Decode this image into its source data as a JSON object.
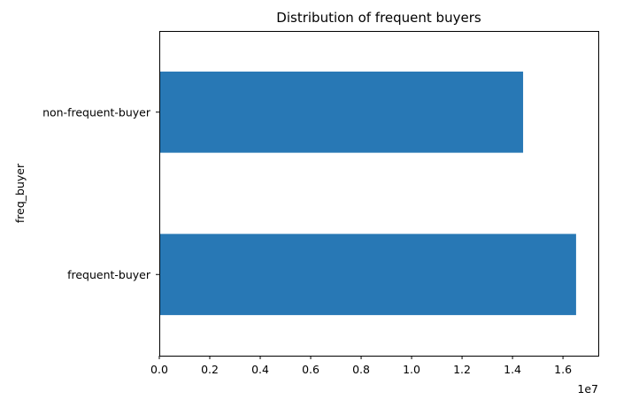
{
  "chart_data": {
    "type": "bar",
    "orientation": "horizontal",
    "title": "Distribution of frequent buyers",
    "xlabel": "",
    "ylabel": "freq_buyer",
    "categories": [
      "frequent-buyer",
      "non-frequent-buyer"
    ],
    "values": [
      16520000,
      14420000
    ],
    "xlim": [
      0,
      17400000
    ],
    "x_ticks": [
      0,
      2000000,
      4000000,
      6000000,
      8000000,
      10000000,
      12000000,
      14000000,
      16000000
    ],
    "x_tick_labels": [
      "0.0",
      "0.2",
      "0.4",
      "0.6",
      "0.8",
      "1.0",
      "1.2",
      "1.4",
      "1.6"
    ],
    "x_offset_text": "1e7",
    "bar_color": "#2878b5",
    "grid": false,
    "legend": "none"
  }
}
